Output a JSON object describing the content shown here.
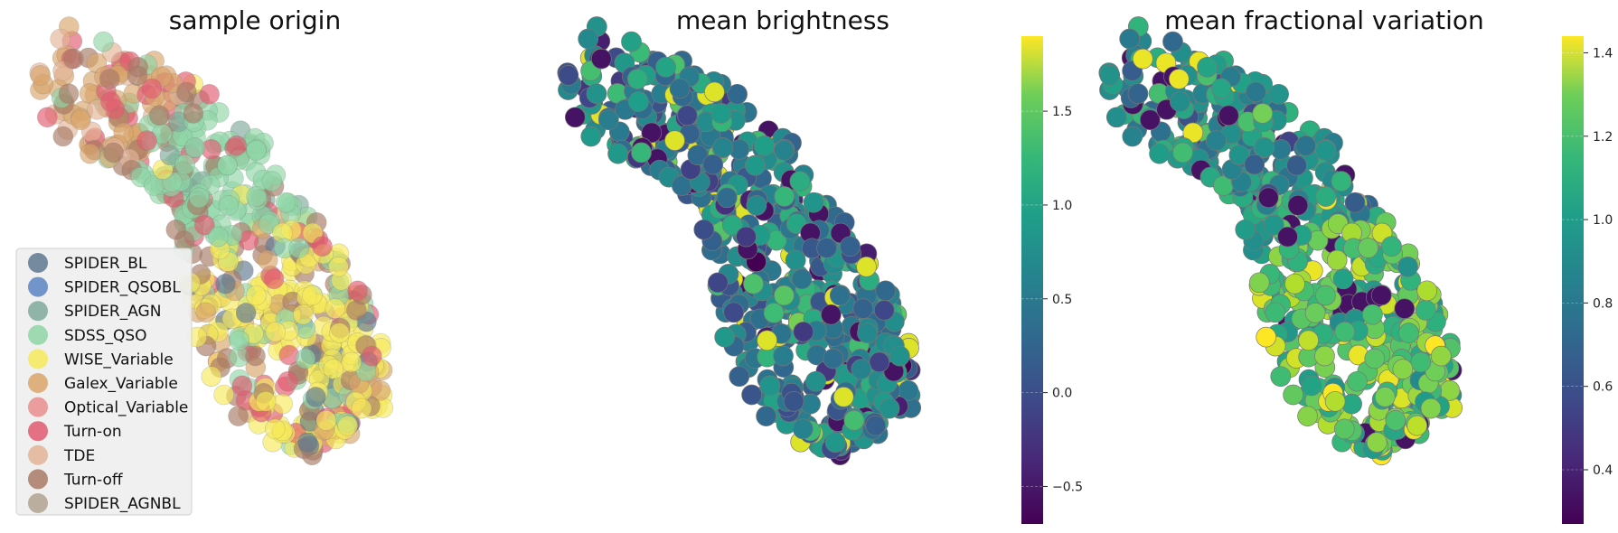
{
  "chart_data": [
    {
      "type": "scatter",
      "title": "sample origin",
      "legend": {
        "placement": "lower-left",
        "entries": [
          {
            "label": "SPIDER_BL",
            "color": "#5f7891"
          },
          {
            "label": "SPIDER_QSOBL",
            "color": "#5b84c4"
          },
          {
            "label": "SPIDER_AGN",
            "color": "#7fa99a"
          },
          {
            "label": "SDSS_QSO",
            "color": "#8fd6a6"
          },
          {
            "label": "WISE_Variable",
            "color": "#f6ea5a"
          },
          {
            "label": "Galex_Variable",
            "color": "#d9a56a"
          },
          {
            "label": "Optical_Variable",
            "color": "#e98e8e"
          },
          {
            "label": "Turn-on",
            "color": "#e25a70"
          },
          {
            "label": "TDE",
            "color": "#e3b397"
          },
          {
            "label": "Turn-off",
            "color": "#a87a66"
          },
          {
            "label": "SPIDER_AGNBL",
            "color": "#b0a291"
          }
        ]
      },
      "grid": false
    },
    {
      "type": "scatter",
      "title": "mean brightness",
      "colorbar": {
        "colormap": "viridis",
        "range": [
          -0.7,
          1.9
        ],
        "ticks": [
          "−0.5",
          "0.0",
          "0.5",
          "1.0",
          "1.5"
        ],
        "tick_values": [
          -0.5,
          0.0,
          0.5,
          1.0,
          1.5
        ]
      },
      "grid": false
    },
    {
      "type": "scatter",
      "title": "mean fractional variation",
      "colorbar": {
        "colormap": "viridis",
        "range": [
          0.27,
          1.44
        ],
        "ticks": [
          "0.4",
          "0.6",
          "0.8",
          "1.0",
          "1.2",
          "1.4"
        ],
        "tick_values": [
          0.4,
          0.6,
          0.8,
          1.0,
          1.2,
          1.4
        ]
      },
      "grid": false
    }
  ]
}
